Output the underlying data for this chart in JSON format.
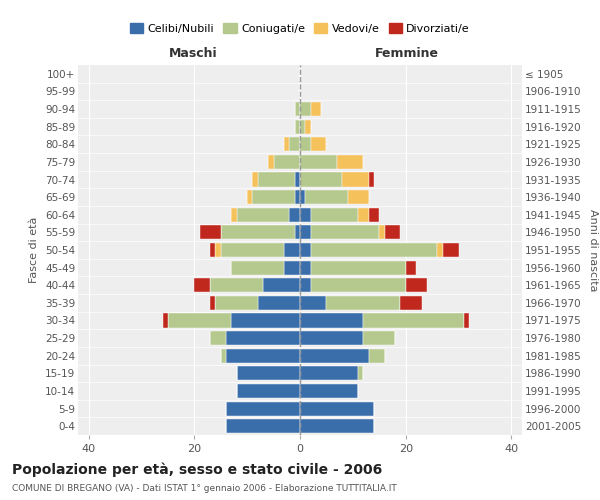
{
  "age_groups": [
    "0-4",
    "5-9",
    "10-14",
    "15-19",
    "20-24",
    "25-29",
    "30-34",
    "35-39",
    "40-44",
    "45-49",
    "50-54",
    "55-59",
    "60-64",
    "65-69",
    "70-74",
    "75-79",
    "80-84",
    "85-89",
    "90-94",
    "95-99",
    "100+"
  ],
  "birth_years": [
    "2001-2005",
    "1996-2000",
    "1991-1995",
    "1986-1990",
    "1981-1985",
    "1976-1980",
    "1971-1975",
    "1966-1970",
    "1961-1965",
    "1956-1960",
    "1951-1955",
    "1946-1950",
    "1941-1945",
    "1936-1940",
    "1931-1935",
    "1926-1930",
    "1921-1925",
    "1916-1920",
    "1911-1915",
    "1906-1910",
    "≤ 1905"
  ],
  "males": {
    "celibi": [
      14,
      14,
      12,
      12,
      14,
      14,
      13,
      8,
      7,
      3,
      3,
      1,
      2,
      1,
      1,
      0,
      0,
      0,
      0,
      0,
      0
    ],
    "coniugati": [
      0,
      0,
      0,
      0,
      1,
      3,
      12,
      8,
      10,
      10,
      12,
      14,
      10,
      8,
      7,
      5,
      2,
      1,
      1,
      0,
      0
    ],
    "vedovi": [
      0,
      0,
      0,
      0,
      0,
      0,
      0,
      0,
      0,
      0,
      1,
      0,
      1,
      1,
      1,
      1,
      1,
      0,
      0,
      0,
      0
    ],
    "divorziati": [
      0,
      0,
      0,
      0,
      0,
      0,
      1,
      1,
      3,
      0,
      1,
      4,
      0,
      0,
      0,
      0,
      0,
      0,
      0,
      0,
      0
    ]
  },
  "females": {
    "nubili": [
      14,
      14,
      11,
      11,
      13,
      12,
      12,
      5,
      2,
      2,
      2,
      2,
      2,
      1,
      0,
      0,
      0,
      0,
      0,
      0,
      0
    ],
    "coniugate": [
      0,
      0,
      0,
      1,
      3,
      6,
      19,
      14,
      18,
      18,
      24,
      13,
      9,
      8,
      8,
      7,
      2,
      1,
      2,
      0,
      0
    ],
    "vedove": [
      0,
      0,
      0,
      0,
      0,
      0,
      0,
      0,
      0,
      0,
      1,
      1,
      2,
      4,
      5,
      5,
      3,
      1,
      2,
      0,
      0
    ],
    "divorziate": [
      0,
      0,
      0,
      0,
      0,
      0,
      1,
      4,
      4,
      2,
      3,
      3,
      2,
      0,
      1,
      0,
      0,
      0,
      0,
      0,
      0
    ]
  },
  "colors": {
    "celibi": "#3a6eaa",
    "coniugati": "#b5c98e",
    "vedovi": "#f5c15b",
    "divorziati": "#c0281e"
  },
  "xlim": 42,
  "title": "Popolazione per età, sesso e stato civile - 2006",
  "subtitle": "COMUNE DI BREGANO (VA) - Dati ISTAT 1° gennaio 2006 - Elaborazione TUTTITALIA.IT",
  "ylabel_left": "Fasce di età",
  "ylabel_right": "Anni di nascita",
  "xlabel_left": "Maschi",
  "xlabel_right": "Femmine",
  "plot_bg": "#eeeeee",
  "background_color": "#ffffff",
  "grid_color": "#ffffff"
}
